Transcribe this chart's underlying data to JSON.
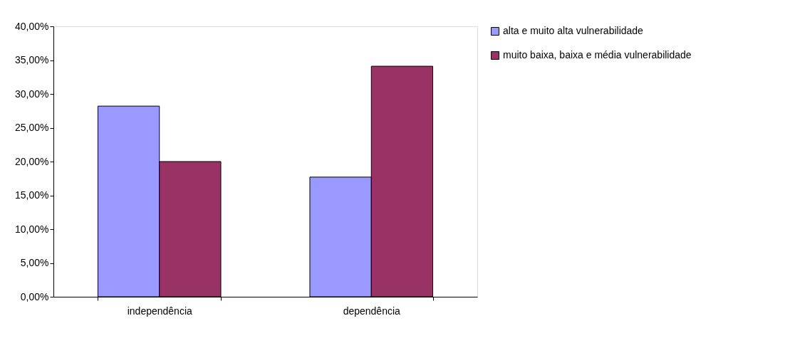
{
  "chart_data": {
    "type": "bar",
    "categories": [
      "independência",
      "dependência"
    ],
    "series": [
      {
        "name": "alta e muito alta vulnerabilidade",
        "color": "#9999ff",
        "values": [
          28.2,
          17.7
        ]
      },
      {
        "name": "muito baixa, baixa e média vulnerabilidade",
        "color": "#993366",
        "values": [
          20.0,
          34.1
        ]
      }
    ],
    "ylim": [
      0,
      40
    ],
    "yticks": [
      {
        "value": 0,
        "label": "0,00%"
      },
      {
        "value": 5,
        "label": "5,00%"
      },
      {
        "value": 10,
        "label": "10,00%"
      },
      {
        "value": 15,
        "label": "15,00%"
      },
      {
        "value": 20,
        "label": "20,00%"
      },
      {
        "value": 25,
        "label": "25,00%"
      },
      {
        "value": 30,
        "label": "30,00%"
      },
      {
        "value": 35,
        "label": "35,00%"
      },
      {
        "value": 40,
        "label": "40,00%"
      }
    ],
    "grid": false,
    "legend": "right"
  }
}
